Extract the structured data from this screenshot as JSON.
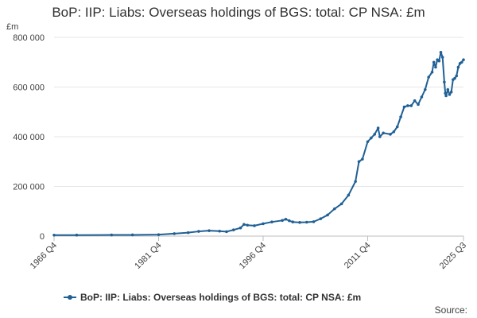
{
  "chart_data": {
    "type": "line",
    "title": "BoP: IIP: Liabs: Overseas holdings of BGS: total: CP NSA: £m",
    "unit_label": "£m",
    "x_tick_labels": [
      "1966 Q4",
      "1981 Q4",
      "1996 Q4",
      "2011 Q4",
      "2025 Q3"
    ],
    "x_tick_years": [
      1966.75,
      1981.75,
      1996.75,
      2011.75,
      2025.5
    ],
    "xlim": [
      1966.75,
      2025.5
    ],
    "y_tick_labels": [
      "0",
      "200 000",
      "400 000",
      "600 000",
      "800 000"
    ],
    "y_ticks": [
      0,
      200000,
      400000,
      600000,
      800000
    ],
    "ylim": [
      0,
      800000
    ],
    "grid": true,
    "legend_position": "bottom",
    "source_label": "Source:",
    "series": [
      {
        "name": "BoP: IIP: Liabs: Overseas holdings of BGS: total: CP NSA: £m",
        "color": "#206095",
        "marker_color": "#206095",
        "points": [
          [
            1966.75,
            4000
          ],
          [
            1970,
            4200
          ],
          [
            1975,
            4600
          ],
          [
            1978,
            5000
          ],
          [
            1981.75,
            6000
          ],
          [
            1984,
            10000
          ],
          [
            1986,
            14000
          ],
          [
            1987.5,
            19000
          ],
          [
            1989,
            22000
          ],
          [
            1990.5,
            20000
          ],
          [
            1991.5,
            18000
          ],
          [
            1992.5,
            25000
          ],
          [
            1993.5,
            33000
          ],
          [
            1994,
            47000
          ],
          [
            1994.5,
            44000
          ],
          [
            1995.5,
            42000
          ],
          [
            1996.75,
            50000
          ],
          [
            1998,
            57000
          ],
          [
            1999.5,
            63000
          ],
          [
            2000,
            68000
          ],
          [
            2000.5,
            62000
          ],
          [
            2001,
            57000
          ],
          [
            2002,
            55000
          ],
          [
            2003,
            56000
          ],
          [
            2004,
            58000
          ],
          [
            2005,
            70000
          ],
          [
            2006,
            85000
          ],
          [
            2007,
            110000
          ],
          [
            2008,
            130000
          ],
          [
            2009,
            165000
          ],
          [
            2010,
            220000
          ],
          [
            2010.5,
            300000
          ],
          [
            2011,
            310000
          ],
          [
            2011.75,
            380000
          ],
          [
            2012.25,
            395000
          ],
          [
            2012.75,
            410000
          ],
          [
            2013.25,
            435000
          ],
          [
            2013.5,
            400000
          ],
          [
            2014,
            415000
          ],
          [
            2015,
            410000
          ],
          [
            2015.5,
            420000
          ],
          [
            2016,
            440000
          ],
          [
            2016.5,
            480000
          ],
          [
            2017,
            520000
          ],
          [
            2017.5,
            525000
          ],
          [
            2018,
            525000
          ],
          [
            2018.5,
            545000
          ],
          [
            2019,
            530000
          ],
          [
            2019.5,
            560000
          ],
          [
            2020,
            590000
          ],
          [
            2020.5,
            640000
          ],
          [
            2021,
            660000
          ],
          [
            2021.25,
            700000
          ],
          [
            2021.5,
            680000
          ],
          [
            2021.75,
            710000
          ],
          [
            2022,
            705000
          ],
          [
            2022.25,
            740000
          ],
          [
            2022.5,
            720000
          ],
          [
            2022.75,
            620000
          ],
          [
            2022.9,
            575000
          ],
          [
            2023,
            565000
          ],
          [
            2023.25,
            590000
          ],
          [
            2023.5,
            570000
          ],
          [
            2023.75,
            580000
          ],
          [
            2024,
            630000
          ],
          [
            2024.25,
            635000
          ],
          [
            2024.5,
            645000
          ],
          [
            2024.75,
            680000
          ],
          [
            2025,
            695000
          ],
          [
            2025.25,
            700000
          ],
          [
            2025.5,
            710000
          ]
        ]
      }
    ]
  }
}
